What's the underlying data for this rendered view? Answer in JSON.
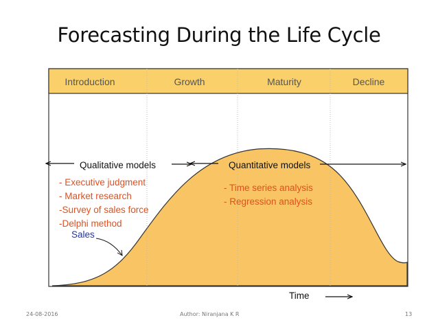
{
  "slide": {
    "title": "Forecasting During the Life Cycle"
  },
  "stages": [
    {
      "label": "Introduction"
    },
    {
      "label": "Growth"
    },
    {
      "label": "Maturity"
    },
    {
      "label": "Decline"
    }
  ],
  "models": {
    "qualitative": {
      "label": "Qualitative models",
      "items": [
        "- Executive judgment",
        "- Market research",
        "-Survey of sales force",
        "-Delphi method"
      ]
    },
    "quantitative": {
      "label": "Quantitative models",
      "items": [
        "- Time series analysis",
        "- Regression analysis"
      ]
    }
  },
  "curve": {
    "label": "Sales"
  },
  "axis": {
    "xlabel": "Time"
  },
  "footer": {
    "date": "24-08-2016",
    "author": "Author: Niranjana K R",
    "page": "13"
  },
  "colors": {
    "header_fill": "#fad06a",
    "curve_fill": "#f9c463",
    "stage_text": "#555555",
    "list_text": "#e0501e",
    "sales_text": "#2233aa"
  }
}
